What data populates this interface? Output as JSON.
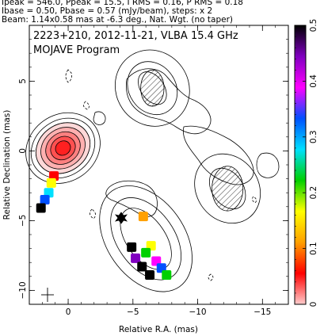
{
  "header": {
    "line1": "Ipeak = 546.0, Ppeak = 15.5, I RMS = 0.16, P RMS = 0.18",
    "line2": "Ibase = 0.50, Pbase = 0.57 (mJy/beam), steps: x 2",
    "line3": "Beam: 1.14x0.58 mas at -6.3 deg., Nat. Wgt. (no taper)"
  },
  "plot": {
    "title": "2223+210, 2012-11-21, VLBA 15.4 GHz",
    "subtitle": "MOJAVE Program"
  },
  "chart_data": {
    "type": "heatmap",
    "xlabel": "Relative R.A. (mas)",
    "ylabel": "Relative Declination (mas)",
    "xlim": [
      3,
      -17
    ],
    "ylim": [
      -11,
      9
    ],
    "x_ticks": [
      0,
      -5,
      -10,
      -15
    ],
    "y_ticks": [
      5,
      0,
      -5,
      -10
    ],
    "colorbar": {
      "label_range": [
        0,
        0.5
      ],
      "ticks": [
        0,
        0.1,
        0.2,
        0.3,
        0.4,
        0.5
      ],
      "colors": [
        "#ffcccc",
        "#ff0000",
        "#ffa000",
        "#ffff00",
        "#00d000",
        "#00e0ff",
        "#0050ff",
        "#ff00ff",
        "#8000c0",
        "#000000"
      ]
    },
    "total_intensity_contours": [
      {
        "name": "core",
        "cx": 0.4,
        "cy": 0.2,
        "radii": [
          [
            0.6,
            0.5
          ],
          [
            1.0,
            0.8
          ],
          [
            1.4,
            1.1
          ],
          [
            1.8,
            1.4
          ],
          [
            2.2,
            1.7
          ],
          [
            2.6,
            2.0
          ],
          [
            3.0,
            2.4
          ]
        ]
      },
      {
        "name": "jet-south",
        "cx": -6.0,
        "cy": -6.3,
        "radii": [
          [
            1.5,
            2.5
          ],
          [
            2.2,
            3.3
          ],
          [
            3.0,
            4.2
          ]
        ]
      },
      {
        "name": "lobe-north",
        "cx": -6.5,
        "cy": 4.5,
        "radii": [
          [
            0.9,
            1.3
          ],
          [
            1.8,
            2.0
          ],
          [
            2.8,
            2.8
          ]
        ]
      },
      {
        "name": "lobe-east",
        "cx": -12.3,
        "cy": -2.7,
        "radii": [
          [
            1.2,
            1.6
          ],
          [
            2.4,
            2.6
          ]
        ]
      }
    ],
    "polarization_patches": [
      {
        "x": 1.1,
        "y": -1.8,
        "value": 0.05
      },
      {
        "x": 1.3,
        "y": -2.3,
        "value": 0.15
      },
      {
        "x": 1.5,
        "y": -3.0,
        "value": 0.25
      },
      {
        "x": 1.8,
        "y": -3.5,
        "value": 0.35
      },
      {
        "x": 2.1,
        "y": -4.1,
        "value": 0.5
      },
      {
        "x": -5.8,
        "y": -4.7,
        "value": 0.12
      },
      {
        "x": -6.4,
        "y": -6.8,
        "value": 0.15
      },
      {
        "x": -6.0,
        "y": -7.3,
        "value": 0.2
      },
      {
        "x": -5.2,
        "y": -7.7,
        "value": 0.45
      },
      {
        "x": -6.8,
        "y": -7.9,
        "value": 0.4
      },
      {
        "x": -5.7,
        "y": -8.3,
        "value": 0.5
      },
      {
        "x": -7.2,
        "y": -8.4,
        "value": 0.32
      },
      {
        "x": -6.3,
        "y": -8.9,
        "value": 0.5
      },
      {
        "x": -7.6,
        "y": -8.9,
        "value": 0.22
      },
      {
        "x": -4.9,
        "y": -6.9,
        "value": 0.5
      }
    ]
  }
}
